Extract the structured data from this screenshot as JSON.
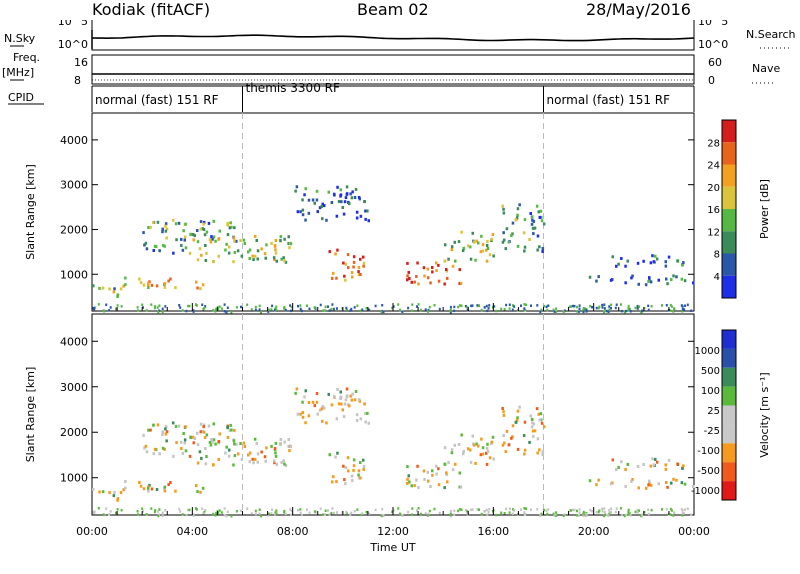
{
  "header": {
    "station": "Kodiak (fitACF)",
    "beam": "Beam 02",
    "date": "28/May/2016"
  },
  "top_panels": {
    "nsky_label": "N.Sky",
    "nsky_ticks": [
      "10^5",
      "10^0"
    ],
    "nsearch_label": "N.Search",
    "nsearch_ticks": [
      "10^5",
      "10^0"
    ],
    "freq_label": "Freq.",
    "freq_unit": "[MHz]",
    "freq_ticks": [
      "16",
      "8"
    ],
    "nave_label": "Nave",
    "nave_ticks": [
      "60",
      "0"
    ],
    "cpid_label": "CPID"
  },
  "cpid_segments": [
    {
      "label": "normal (fast) 151 RF",
      "start_h": 0,
      "end_h": 6
    },
    {
      "label": "themis 3300 RF",
      "start_h": 6,
      "end_h": 18
    },
    {
      "label": "normal (fast) 151 RF",
      "start_h": 18,
      "end_h": 24
    }
  ],
  "colors": {
    "power_scale": [
      "#1e2ee6",
      "#2a57a8",
      "#3a8a5a",
      "#55b845",
      "#d9c43a",
      "#f2a01e",
      "#e8631b",
      "#d41e1e"
    ],
    "velocity_scale": [
      "#e01818",
      "#f05a1a",
      "#f59a1e",
      "#c8c8c8",
      "#c8c8c8",
      "#5ab83a",
      "#3a8a5a",
      "#2a4fa8",
      "#1e2ed0"
    ],
    "echo_grey": "#c4c4c4"
  },
  "chart_data": [
    {
      "type": "heatmap",
      "panel": "power",
      "ylabel": "Slant Range [km]",
      "yticks": [
        1000,
        2000,
        3000,
        4000
      ],
      "ylim": [
        180,
        4600
      ],
      "xlim": [
        0,
        24
      ],
      "colorbar_label": "Power [dB]",
      "colorbar_ticks": [
        "28",
        "24",
        "20",
        "16",
        "12",
        "8",
        "4"
      ],
      "echo_regions": [
        {
          "t0": 0.0,
          "t1": 1.2,
          "r0": 500,
          "r1": 800,
          "level": 0.45
        },
        {
          "t0": 1.0,
          "t1": 4.6,
          "r0": 700,
          "r1": 950,
          "level": 0.6
        },
        {
          "t0": 2.0,
          "t1": 5.8,
          "r0": 1500,
          "r1": 2250,
          "level": 0.35
        },
        {
          "t0": 4.0,
          "t1": 8.0,
          "r0": 1300,
          "r1": 1900,
          "level": 0.5
        },
        {
          "t0": 8.0,
          "t1": 11.0,
          "r0": 2200,
          "r1": 3000,
          "level": 0.2
        },
        {
          "t0": 9.4,
          "t1": 10.8,
          "r0": 900,
          "r1": 1600,
          "level": 0.8
        },
        {
          "t0": 12.5,
          "t1": 14.8,
          "r0": 800,
          "r1": 1300,
          "level": 0.85
        },
        {
          "t0": 14.0,
          "t1": 16.0,
          "r0": 1300,
          "r1": 2000,
          "level": 0.5
        },
        {
          "t0": 16.3,
          "t1": 18.0,
          "r0": 1500,
          "r1": 2600,
          "level": 0.3
        },
        {
          "t0": 20.5,
          "t1": 24.0,
          "r0": 1200,
          "r1": 1450,
          "level": 0.15
        },
        {
          "t0": 19.5,
          "t1": 24.0,
          "r0": 800,
          "r1": 1000,
          "level": 0.2
        }
      ]
    },
    {
      "type": "heatmap",
      "panel": "velocity",
      "ylabel": "Slant Range [km]",
      "yticks": [
        1000,
        2000,
        3000,
        4000
      ],
      "ylim": [
        180,
        4600
      ],
      "xlim": [
        0,
        24
      ],
      "xlabel": "Time UT",
      "xticks": [
        "00:00",
        "04:00",
        "08:00",
        "12:00",
        "16:00",
        "20:00",
        "00:00"
      ],
      "colorbar_label": "Velocity [m s⁻¹]",
      "colorbar_ticks": [
        "1000",
        "500",
        "100",
        "25",
        "-25",
        "-100",
        "-500",
        "-1000"
      ]
    }
  ]
}
